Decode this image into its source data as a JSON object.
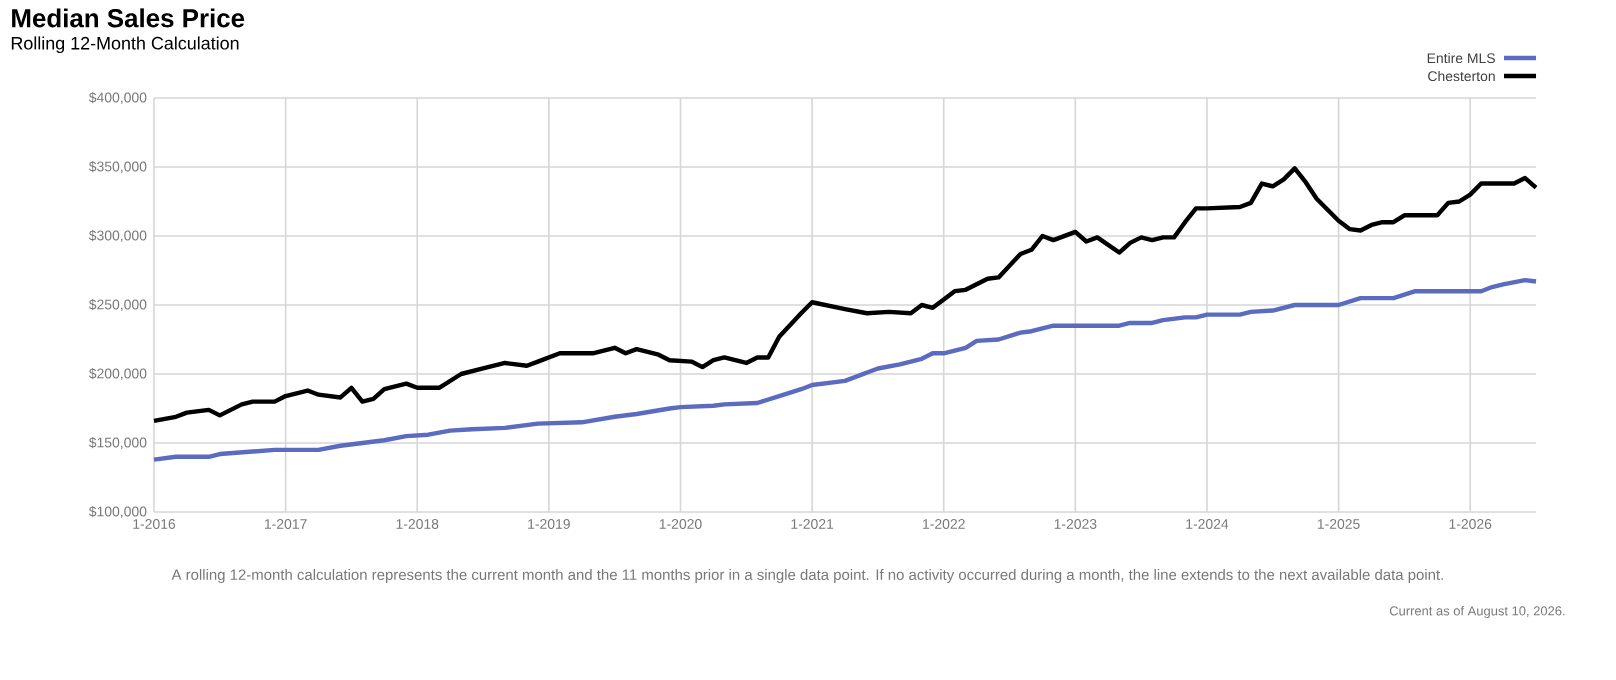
{
  "chart_data": {
    "type": "line",
    "title": "Median Sales Price",
    "subtitle": "Rolling 12-Month Calculation",
    "annotations": [
      "A rolling 12-month calculation represents the current month and the 11 months prior in a single data point. If no activity occurred during a month, the line extends to the next available data point.",
      "Current as of August 10, 2026."
    ],
    "series": [
      {
        "name": "Entire MLS",
        "color": "#5b6bbf",
        "x": [
          "2016-01",
          "2016-03",
          "2016-06",
          "2016-07",
          "2016-12",
          "2017-04",
          "2017-06",
          "2017-08",
          "2017-10",
          "2017-12",
          "2018-02",
          "2018-04",
          "2018-06",
          "2018-09",
          "2018-12",
          "2019-04",
          "2019-07",
          "2019-09",
          "2019-12",
          "2020-01",
          "2020-04",
          "2020-05",
          "2020-08",
          "2020-10",
          "2020-12",
          "2021-01",
          "2021-04",
          "2021-07",
          "2021-09",
          "2021-11",
          "2021-12",
          "2022-01",
          "2022-03",
          "2022-04",
          "2022-06",
          "2022-08",
          "2022-09",
          "2022-11",
          "2023-05",
          "2023-06",
          "2023-08",
          "2023-09",
          "2023-11",
          "2023-12",
          "2024-01",
          "2024-04",
          "2024-05",
          "2024-07",
          "2024-08",
          "2024-09",
          "2025-01",
          "2025-03",
          "2025-06",
          "2025-08",
          "2026-02",
          "2026-03",
          "2026-04",
          "2026-06",
          "2026-07"
        ],
        "values": [
          138000,
          140000,
          140000,
          142000,
          145000,
          145000,
          148000,
          150000,
          152000,
          155000,
          156000,
          159000,
          160000,
          161000,
          164000,
          165000,
          169000,
          171000,
          175000,
          176000,
          177000,
          178000,
          179000,
          184000,
          189000,
          192000,
          195000,
          204000,
          207000,
          211000,
          215000,
          215000,
          219000,
          224000,
          225000,
          230000,
          231000,
          235000,
          235000,
          237000,
          237000,
          239000,
          241000,
          241000,
          243000,
          243000,
          245000,
          246000,
          248000,
          250000,
          250000,
          255000,
          255000,
          260000,
          260000,
          263000,
          265000,
          268000,
          267000
        ]
      },
      {
        "name": "Chesterton",
        "color": "#000000",
        "x": [
          "2016-01",
          "2016-03",
          "2016-04",
          "2016-06",
          "2016-07",
          "2016-09",
          "2016-10",
          "2016-12",
          "2017-01",
          "2017-03",
          "2017-04",
          "2017-06",
          "2017-07",
          "2017-08",
          "2017-09",
          "2017-10",
          "2017-12",
          "2018-01",
          "2018-03",
          "2018-05",
          "2018-07",
          "2018-09",
          "2018-11",
          "2018-12",
          "2019-02",
          "2019-05",
          "2019-07",
          "2019-08",
          "2019-09",
          "2019-11",
          "2019-12",
          "2020-02",
          "2020-03",
          "2020-04",
          "2020-05",
          "2020-07",
          "2020-08",
          "2020-09",
          "2020-10",
          "2020-12",
          "2021-01",
          "2021-04",
          "2021-06",
          "2021-08",
          "2021-10",
          "2021-11",
          "2021-12",
          "2022-01",
          "2022-02",
          "2022-03",
          "2022-05",
          "2022-06",
          "2022-08",
          "2022-09",
          "2022-10",
          "2022-11",
          "2022-12",
          "2023-01",
          "2023-02",
          "2023-03",
          "2023-05",
          "2023-06",
          "2023-07",
          "2023-08",
          "2023-09",
          "2023-10",
          "2023-11",
          "2023-12",
          "2024-01",
          "2024-04",
          "2024-05",
          "2024-06",
          "2024-07",
          "2024-08",
          "2024-09",
          "2024-10",
          "2024-11",
          "2024-12",
          "2025-01",
          "2025-02",
          "2025-03",
          "2025-04",
          "2025-05",
          "2025-06",
          "2025-07",
          "2025-10",
          "2025-11",
          "2025-12",
          "2026-01",
          "2026-02",
          "2026-05",
          "2026-06",
          "2026-07"
        ],
        "values": [
          166000,
          169000,
          172000,
          174000,
          170000,
          178000,
          180000,
          180000,
          184000,
          188000,
          185000,
          183000,
          190000,
          180000,
          182000,
          189000,
          193000,
          190000,
          190000,
          200000,
          204000,
          208000,
          206000,
          209000,
          215000,
          215000,
          219000,
          215000,
          218000,
          214000,
          210000,
          209000,
          205000,
          210000,
          212000,
          208000,
          212000,
          212000,
          227000,
          244000,
          252000,
          247000,
          244000,
          245000,
          244000,
          250000,
          248000,
          254000,
          260000,
          261000,
          269000,
          270000,
          287000,
          290000,
          300000,
          297000,
          300000,
          303000,
          296000,
          299000,
          288000,
          295000,
          299000,
          297000,
          299000,
          299000,
          310000,
          320000,
          320000,
          321000,
          324000,
          338000,
          336000,
          341000,
          349000,
          339000,
          327000,
          319000,
          311000,
          305000,
          304000,
          308000,
          310000,
          310000,
          315000,
          315000,
          324000,
          325000,
          330000,
          338000,
          338000,
          342000,
          335000
        ]
      }
    ],
    "xlim": [
      "2016-01",
      "2026-07"
    ],
    "xticks": [
      {
        "value": "2016-01",
        "label": "1-2016"
      },
      {
        "value": "2017-01",
        "label": "1-2017"
      },
      {
        "value": "2018-01",
        "label": "1-2018"
      },
      {
        "value": "2019-01",
        "label": "1-2019"
      },
      {
        "value": "2020-01",
        "label": "1-2020"
      },
      {
        "value": "2021-01",
        "label": "1-2021"
      },
      {
        "value": "2022-01",
        "label": "1-2022"
      },
      {
        "value": "2023-01",
        "label": "1-2023"
      },
      {
        "value": "2024-01",
        "label": "1-2024"
      },
      {
        "value": "2025-01",
        "label": "1-2025"
      },
      {
        "value": "2026-01",
        "label": "1-2026"
      }
    ],
    "ylim": [
      100000,
      400000
    ],
    "yticks": [
      {
        "value": 100000,
        "label": "$100,000"
      },
      {
        "value": 150000,
        "label": "$150,000"
      },
      {
        "value": 200000,
        "label": "$200,000"
      },
      {
        "value": 250000,
        "label": "$250,000"
      },
      {
        "value": 300000,
        "label": "$300,000"
      },
      {
        "value": 350000,
        "label": "$350,000"
      },
      {
        "value": 400000,
        "label": "$400,000"
      }
    ],
    "grid": true,
    "legend": "top right"
  }
}
